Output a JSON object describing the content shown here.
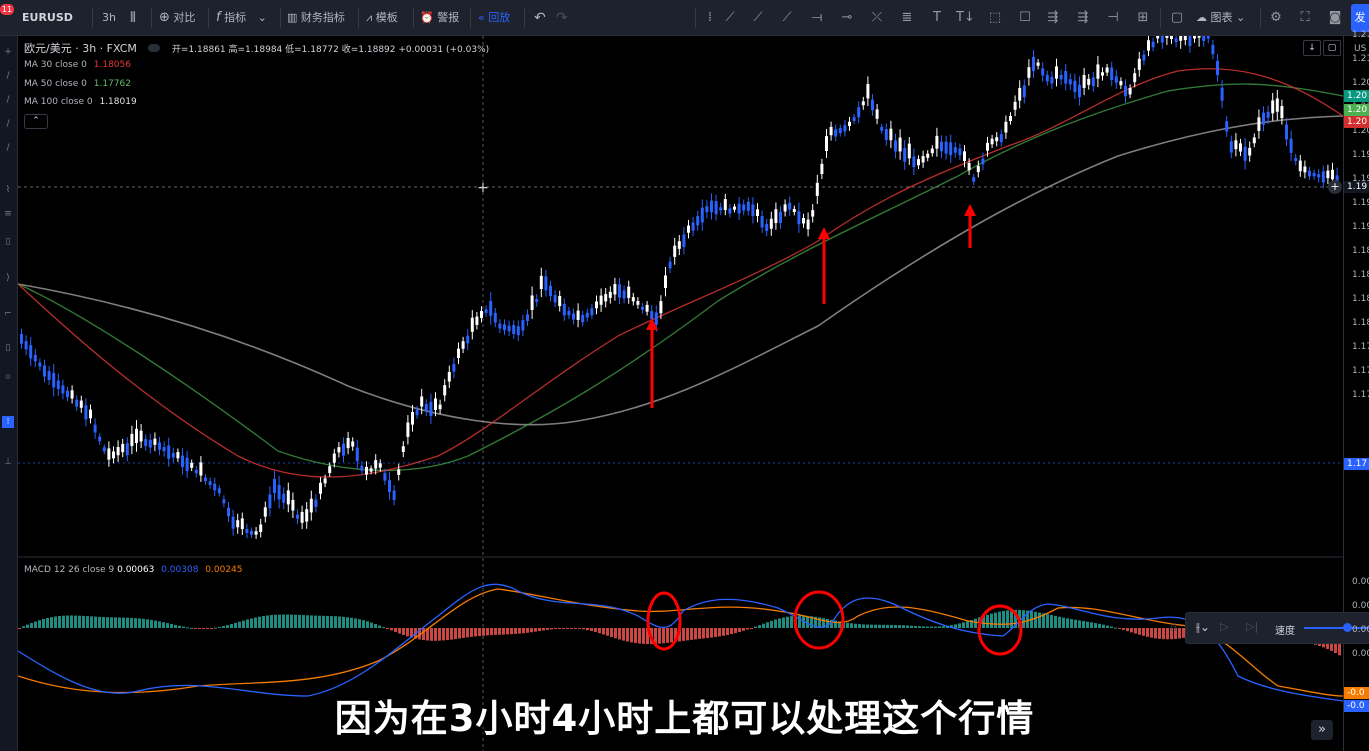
{
  "toolbar": {
    "symbol": "EURUSD",
    "interval": "3h",
    "compare": "对比",
    "indicators": "指标",
    "financials": "财务指标",
    "templates": "模板",
    "alert": "警报",
    "replay": "回放",
    "chart_type": "图表",
    "publish": "发",
    "notification_badge": "11"
  },
  "legend": {
    "title": "欧元/美元 · 3h · FXCM",
    "ohlc": "开=1.18861 高=1.18984 低=1.18772 收=1.18892 +0.00031 (+0.03%)",
    "ma30_label": "MA 30 close 0",
    "ma30_value": "1.18056",
    "ma50_label": "MA 50 close 0",
    "ma50_value": "1.17762",
    "ma100_label": "MA 100 close 0",
    "ma100_value": "1.18019"
  },
  "macd_legend": {
    "label": "MACD 12 26 close 9",
    "hist_value": "0.00063",
    "macd_value": "0.00308",
    "signal_value": "0.00245"
  },
  "price_axis": {
    "currency": "US",
    "labels": [
      "1.21",
      "1.21",
      "1.20",
      "1.20",
      "1.20",
      "1.19",
      "1.19",
      "1.19",
      "1.19",
      "1.18",
      "1.18",
      "1.18",
      "1.18",
      "1.17",
      "1.17",
      "1.17"
    ],
    "badges": [
      {
        "text": "1.20",
        "color": "#089981"
      },
      {
        "text": "1.20",
        "color": "#4caf50"
      },
      {
        "text": "1.20",
        "color": "#d32f2f"
      },
      {
        "text": "1.19",
        "color": "#131722"
      },
      {
        "text": "1.17",
        "color": "#2962ff"
      }
    ]
  },
  "macd_axis": {
    "labels": [
      "0.00",
      "0.00",
      "0.00",
      "0.00"
    ],
    "badges": [
      {
        "text": "-0.0",
        "color": "#f57c00"
      },
      {
        "text": "-0.0",
        "color": "#2962ff"
      }
    ]
  },
  "replay_panel": {
    "speed_label": "速度"
  },
  "subtitle": "因为在3小时4小时上都可以处理这个行情",
  "colors": {
    "ma30": "#e53935",
    "ma50": "#43a047",
    "ma100": "#9e9e9e",
    "candle_up": "#ffffff",
    "candle_down": "#2962ff",
    "macd_line": "#2962ff",
    "signal_line": "#f57c00",
    "hist_pos": "#26a69a",
    "hist_neg": "#ef5350",
    "annotation": "#ff0000"
  }
}
